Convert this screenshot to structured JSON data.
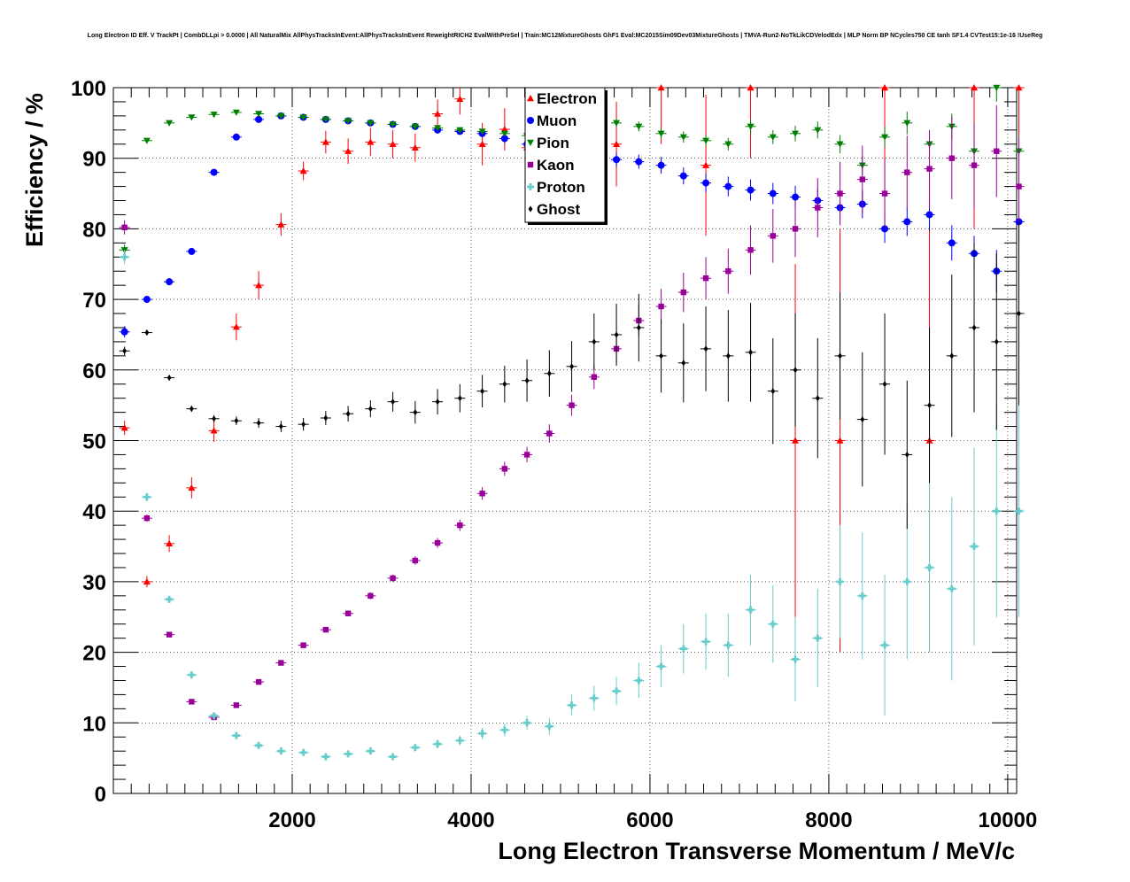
{
  "chart_data": {
    "type": "scatter",
    "title": "Long Electron ID Eff. V TrackPt | CombDLLpi > 0.0000 | All NaturalMix AllPhysTracksInEvent:AllPhysTracksInEvent ReweightRICH2 EvalWithPreSel | Train:MC12MixtureGhosts GhF1 Eval:MC2015Sim09Dev03MixtureGhosts | TMVA-Run2-NoTkLikCDVelodEdx | MLP Norm BP NCycles750 CE tanh SF1.4 CVTest15:1e-16 !UseReg",
    "xlabel": "Long Electron Transverse Momentum / MeV/c",
    "ylabel": "Efficiency / %",
    "xlim": [
      0,
      10100
    ],
    "ylim": [
      0,
      100
    ],
    "xticks": [
      2000,
      4000,
      6000,
      8000,
      10000
    ],
    "xtick_labels": [
      "2000",
      "4000",
      "6000",
      "8000",
      "10000"
    ],
    "yticks": [
      0,
      10,
      20,
      30,
      40,
      50,
      60,
      70,
      80,
      90,
      100
    ],
    "ytick_labels": [
      "0",
      "10",
      "20",
      "30",
      "40",
      "50",
      "60",
      "70",
      "80",
      "90",
      "100"
    ],
    "grid": true,
    "legend_position": "top-center",
    "series": [
      {
        "name": "Electron",
        "color": "#ff0000",
        "marker": "triangle-up",
        "x": [
          0,
          250,
          500,
          750,
          1000,
          1250,
          1500,
          1750,
          2000,
          2250,
          2500,
          2750,
          3000,
          3250,
          3500,
          3750,
          4000,
          4250,
          4500,
          5000,
          5500,
          6000,
          6500,
          7000,
          7500,
          8000,
          8500,
          9000,
          9500,
          10000
        ],
        "y": [
          51.8,
          30.0,
          35.4,
          43.3,
          51.4,
          66.1,
          72.0,
          80.6,
          88.2,
          92.3,
          91.0,
          92.3,
          92.0,
          91.5,
          96.3,
          98.4,
          92.0,
          94.1,
          91.5,
          96.0,
          92.0,
          100,
          89.0,
          100,
          50.0,
          50.0,
          100,
          50.0,
          100,
          100
        ],
        "yerr": [
          1.0,
          0.8,
          1.2,
          1.5,
          1.6,
          1.9,
          2.0,
          1.6,
          1.3,
          1.6,
          1.8,
          2.0,
          2.0,
          2.0,
          2.0,
          2.2,
          3.0,
          3.0,
          4.0,
          5.0,
          6.0,
          8.0,
          10.0,
          10.0,
          25.0,
          30.0,
          20.0,
          30.0,
          20.0,
          15.0
        ]
      },
      {
        "name": "Muon",
        "color": "#0000ff",
        "marker": "circle",
        "x": [
          0,
          250,
          500,
          750,
          1000,
          1250,
          1500,
          1750,
          2000,
          2250,
          2500,
          2750,
          3000,
          3250,
          3500,
          3750,
          4000,
          4250,
          4500,
          4750,
          5000,
          5250,
          5500,
          5750,
          6000,
          6250,
          6500,
          6750,
          7000,
          7250,
          7500,
          7750,
          8000,
          8250,
          8500,
          8750,
          9000,
          9250,
          9500,
          9750,
          10000
        ],
        "y": [
          65.4,
          70.0,
          72.5,
          76.8,
          88.0,
          93.0,
          95.5,
          96.0,
          95.8,
          95.5,
          95.3,
          95.0,
          94.8,
          94.5,
          94.0,
          93.8,
          93.5,
          92.8,
          92.0,
          91.5,
          91.0,
          90.5,
          89.8,
          89.5,
          89.0,
          87.5,
          86.5,
          86.0,
          85.5,
          85.0,
          84.5,
          84.0,
          83.0,
          83.5,
          80.0,
          81.0,
          82.0,
          78.0,
          76.5,
          74.0,
          81.0
        ],
        "yerr": [
          0.8,
          0.5,
          0.5,
          0.5,
          0.4,
          0.3,
          0.2,
          0.2,
          0.2,
          0.3,
          0.3,
          0.3,
          0.3,
          0.4,
          0.4,
          0.4,
          0.5,
          0.6,
          0.7,
          0.8,
          0.9,
          1.0,
          1.0,
          1.0,
          1.2,
          1.2,
          1.3,
          1.4,
          1.5,
          1.5,
          1.6,
          1.7,
          2.0,
          2.0,
          2.0,
          2.0,
          2.2,
          2.5,
          2.5,
          3.0,
          3.0
        ]
      },
      {
        "name": "Pion",
        "color": "#008000",
        "marker": "triangle-down",
        "x": [
          0,
          250,
          500,
          750,
          1000,
          1250,
          1500,
          1750,
          2000,
          2250,
          2500,
          2750,
          3000,
          3250,
          3500,
          3750,
          4000,
          4250,
          4500,
          4750,
          5000,
          5250,
          5500,
          5750,
          6000,
          6250,
          6500,
          6750,
          7000,
          7250,
          7500,
          7750,
          8000,
          8250,
          8500,
          8750,
          9000,
          9250,
          9500,
          9750,
          10000
        ],
        "y": [
          77.0,
          92.5,
          95.0,
          95.8,
          96.2,
          96.5,
          96.3,
          96.0,
          95.8,
          95.5,
          95.3,
          95.0,
          94.8,
          94.5,
          94.3,
          94.0,
          93.8,
          93.5,
          93.2,
          93.0,
          93.0,
          94.5,
          95.0,
          94.5,
          93.5,
          93.0,
          92.5,
          92.0,
          94.5,
          93.0,
          93.5,
          94.0,
          92.0,
          89.0,
          93.0,
          95.0,
          92.0,
          94.5,
          91.0,
          100,
          91.0
        ],
        "yerr": [
          0.8,
          0.3,
          0.2,
          0.2,
          0.2,
          0.2,
          0.2,
          0.2,
          0.2,
          0.2,
          0.2,
          0.2,
          0.2,
          0.3,
          0.3,
          0.3,
          0.3,
          0.4,
          0.4,
          0.5,
          0.5,
          0.6,
          0.6,
          0.7,
          0.7,
          0.8,
          0.8,
          0.9,
          1.0,
          1.0,
          1.1,
          1.2,
          1.3,
          1.4,
          1.5,
          1.6,
          1.7,
          1.8,
          2.0,
          2.0,
          2.2
        ]
      },
      {
        "name": "Kaon",
        "color": "#990099",
        "marker": "square",
        "x": [
          0,
          250,
          500,
          750,
          1000,
          1250,
          1500,
          1750,
          2000,
          2250,
          2500,
          2750,
          3000,
          3250,
          3500,
          3750,
          4000,
          4250,
          4500,
          4750,
          5000,
          5250,
          5500,
          5750,
          6000,
          6250,
          6500,
          6750,
          7000,
          7250,
          7500,
          7750,
          8000,
          8250,
          8500,
          8750,
          9000,
          9250,
          9500,
          9750,
          10000
        ],
        "y": [
          80.2,
          39.0,
          22.5,
          13.0,
          10.8,
          12.5,
          15.8,
          18.5,
          21.0,
          23.2,
          25.5,
          28.0,
          30.5,
          33.0,
          35.5,
          38.0,
          42.5,
          46.0,
          48.0,
          51.0,
          55.0,
          59.0,
          63.0,
          67.0,
          69.0,
          71.0,
          73.0,
          74.0,
          77.0,
          79.0,
          80.0,
          83.0,
          85.0,
          87.0,
          85.0,
          88.0,
          88.5,
          90.0,
          89.0,
          91.0,
          86.0
        ],
        "yerr": [
          1.0,
          0.5,
          0.3,
          0.2,
          0.2,
          0.2,
          0.3,
          0.3,
          0.3,
          0.4,
          0.4,
          0.5,
          0.5,
          0.6,
          0.7,
          0.8,
          0.9,
          1.0,
          1.1,
          1.3,
          1.5,
          1.7,
          2.0,
          2.2,
          2.5,
          2.8,
          3.0,
          3.2,
          3.5,
          3.8,
          4.0,
          4.2,
          4.5,
          4.8,
          5.0,
          5.2,
          5.5,
          5.8,
          6.0,
          6.5,
          7.0
        ]
      },
      {
        "name": "Proton",
        "color": "#66cccc",
        "marker": "cross",
        "x": [
          0,
          250,
          500,
          750,
          1000,
          1250,
          1500,
          1750,
          2000,
          2250,
          2500,
          2750,
          3000,
          3250,
          3500,
          3750,
          4000,
          4250,
          4500,
          4750,
          5000,
          5250,
          5500,
          5750,
          6000,
          6250,
          6500,
          6750,
          7000,
          7250,
          7500,
          7750,
          8000,
          8250,
          8500,
          8750,
          9000,
          9250,
          9500,
          9750,
          10000
        ],
        "y": [
          76.0,
          42.0,
          27.5,
          16.8,
          11.0,
          8.2,
          6.8,
          6.0,
          5.8,
          5.2,
          5.6,
          6.0,
          5.2,
          6.5,
          7.0,
          7.5,
          8.5,
          9.0,
          10.0,
          9.5,
          12.5,
          13.5,
          14.5,
          16.0,
          18.0,
          20.5,
          21.5,
          21.0,
          26.0,
          24.0,
          19.0,
          22.0,
          30.0,
          28.0,
          21.0,
          30.0,
          32.0,
          29.0,
          35.0,
          40.0,
          40.0
        ],
        "yerr": [
          1.0,
          0.6,
          0.4,
          0.3,
          0.2,
          0.2,
          0.2,
          0.2,
          0.2,
          0.2,
          0.3,
          0.3,
          0.4,
          0.5,
          0.6,
          0.7,
          0.8,
          0.9,
          1.0,
          1.2,
          1.5,
          1.8,
          2.0,
          2.5,
          3.0,
          3.5,
          4.0,
          4.5,
          5.0,
          5.5,
          6.0,
          7.0,
          8.0,
          9.0,
          10.0,
          11.0,
          12.0,
          13.0,
          14.0,
          15.0,
          15.0
        ]
      },
      {
        "name": "Ghost",
        "color": "#000000",
        "marker": "diamond",
        "x": [
          0,
          250,
          500,
          750,
          1000,
          1250,
          1500,
          1750,
          2000,
          2250,
          2500,
          2750,
          3000,
          3250,
          3500,
          3750,
          4000,
          4250,
          4500,
          4750,
          5000,
          5250,
          5500,
          5750,
          6000,
          6250,
          6500,
          6750,
          7000,
          7250,
          7500,
          7750,
          8000,
          8250,
          8500,
          8750,
          9000,
          9250,
          9500,
          9750,
          10000
        ],
        "y": [
          62.7,
          65.3,
          58.9,
          54.5,
          53.1,
          52.8,
          52.5,
          52.0,
          52.3,
          53.2,
          53.8,
          54.5,
          55.5,
          54.0,
          55.5,
          56.0,
          57.0,
          58.0,
          58.5,
          59.5,
          60.5,
          64.0,
          65.0,
          66.0,
          62.0,
          61.0,
          63.0,
          62.0,
          62.5,
          57.0,
          60.0,
          56.0,
          62.0,
          53.0,
          58.0,
          48.0,
          55.0,
          62.0,
          66.0,
          64.0,
          68.0
        ],
        "yerr": [
          0.6,
          0.4,
          0.4,
          0.4,
          0.5,
          0.6,
          0.7,
          0.8,
          0.9,
          1.0,
          1.1,
          1.2,
          1.4,
          1.6,
          1.8,
          2.0,
          2.3,
          2.6,
          3.0,
          3.3,
          3.6,
          4.0,
          4.4,
          4.8,
          5.2,
          5.6,
          6.0,
          6.5,
          7.0,
          7.5,
          8.0,
          8.5,
          9.0,
          9.5,
          10.0,
          10.5,
          11.0,
          11.5,
          12.0,
          12.5,
          13.0
        ]
      }
    ]
  }
}
